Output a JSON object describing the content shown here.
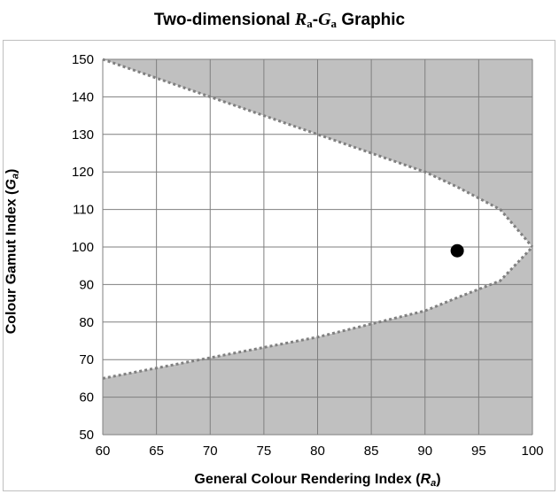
{
  "chart_data": {
    "type": "scatter",
    "title": {
      "prefix": "Two-dimensional ",
      "sym1": "R",
      "sub1": "a",
      "sep": "-",
      "sym2": "G",
      "sub2": "a",
      "suffix": " Graphic"
    },
    "xlabel": {
      "text": "General Colour Rendering Index (",
      "sym": "R",
      "sub": "a",
      "close": ")"
    },
    "ylabel": {
      "text": "Colour Gamut Index (",
      "sym": "G",
      "sub": "a",
      "close": ")"
    },
    "xlim": [
      60,
      100
    ],
    "ylim": [
      50,
      150
    ],
    "x_ticks": [
      60,
      65,
      70,
      75,
      80,
      85,
      90,
      95,
      100
    ],
    "y_ticks": [
      50,
      60,
      70,
      80,
      90,
      100,
      110,
      120,
      130,
      140,
      150
    ],
    "grid": true,
    "legend": "none",
    "boundary_upper": [
      [
        60,
        150
      ],
      [
        70,
        140
      ],
      [
        80,
        130
      ],
      [
        90,
        120
      ],
      [
        93,
        116
      ],
      [
        97,
        110
      ],
      [
        100,
        100
      ]
    ],
    "boundary_lower": [
      [
        60,
        65
      ],
      [
        70,
        70.5
      ],
      [
        80,
        76
      ],
      [
        90,
        83
      ],
      [
        93,
        86.5
      ],
      [
        97,
        91
      ],
      [
        100,
        100
      ]
    ],
    "point": {
      "x": 93,
      "y": 99
    },
    "colors": {
      "shaded": "#c0c0c0",
      "boundary": "#808080",
      "grid": "#7f7f7f",
      "point": "#000000"
    }
  }
}
